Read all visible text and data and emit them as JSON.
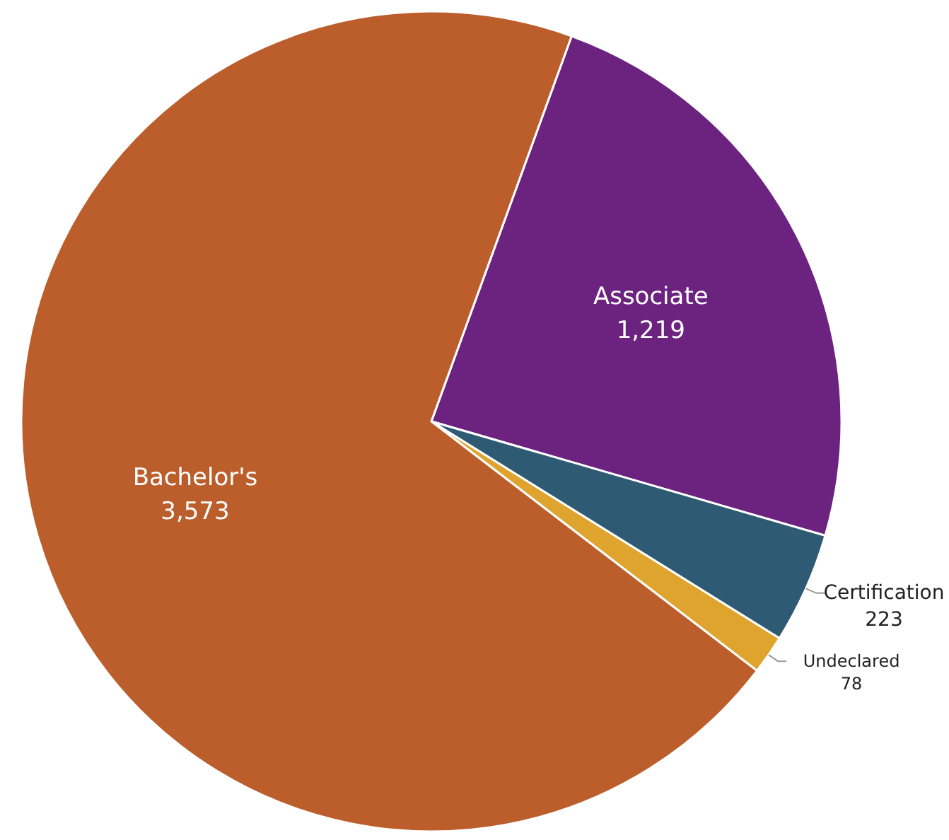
{
  "chart_data": {
    "type": "pie",
    "categories": [
      "Associate",
      "Certification",
      "Undeclared",
      "Bachelor's"
    ],
    "values": [
      1219,
      223,
      78,
      3573
    ],
    "colors": [
      "#6c2380",
      "#2e5a73",
      "#dea42e",
      "#bb5e2c"
    ],
    "value_labels": [
      "1,219",
      "223",
      "78",
      "3,573"
    ]
  }
}
